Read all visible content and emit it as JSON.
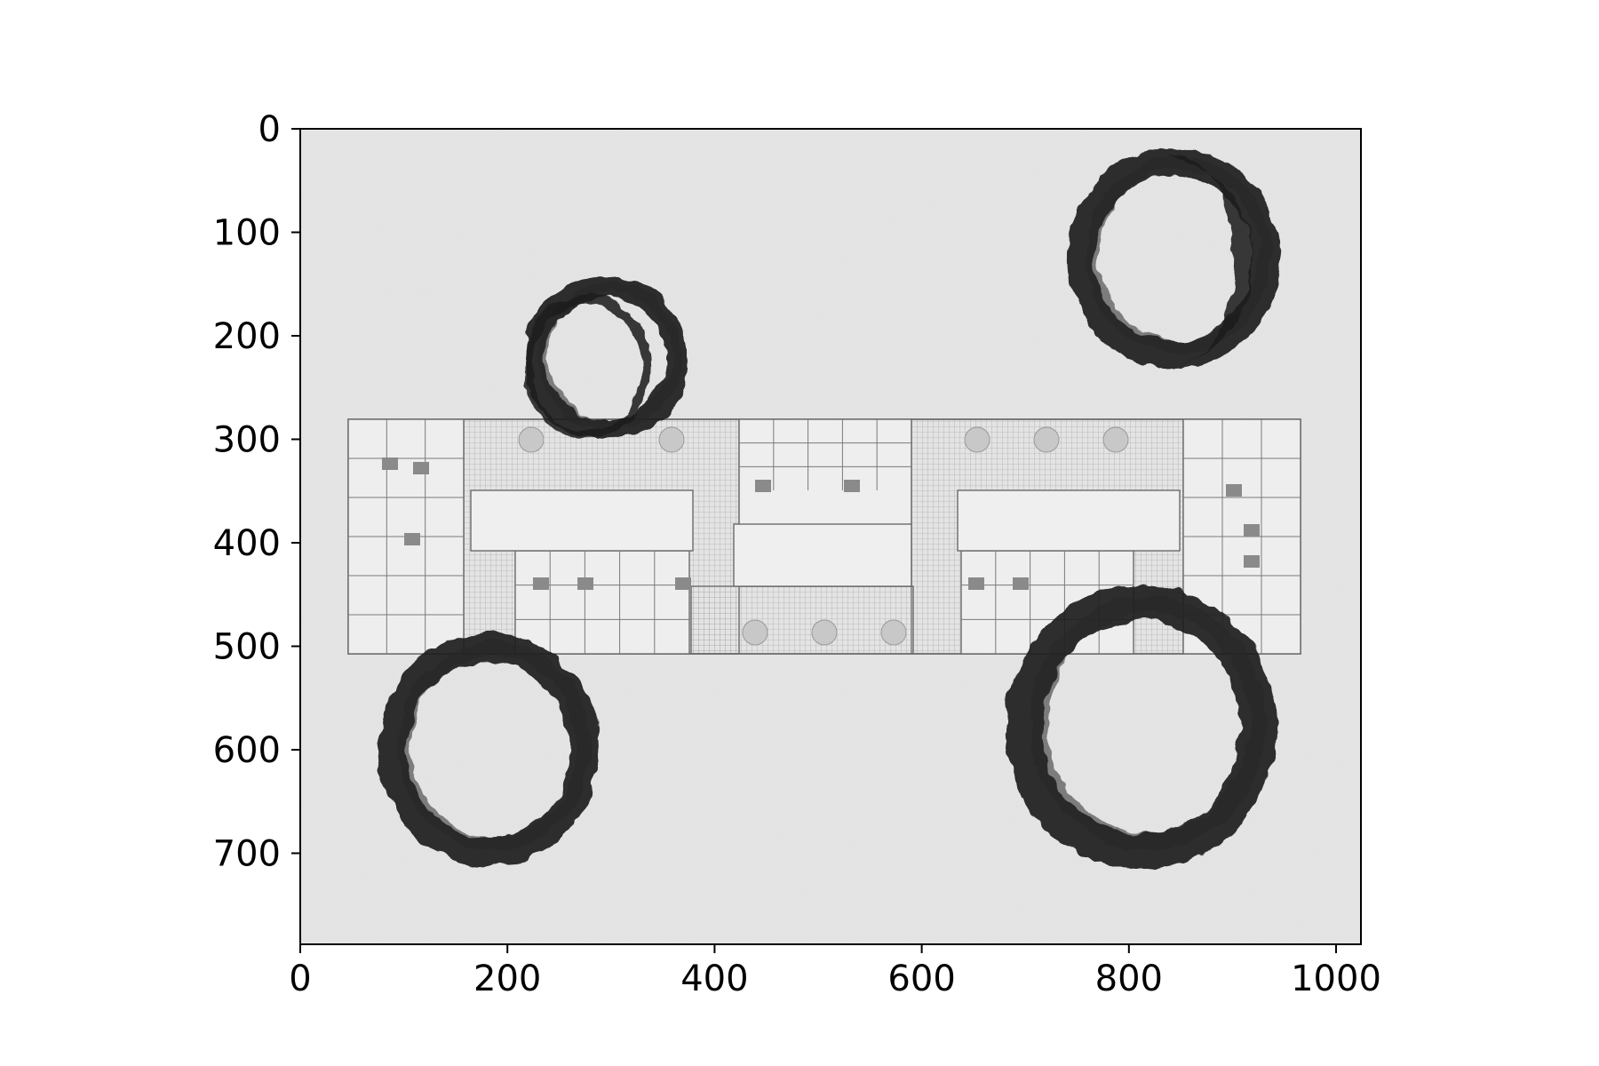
{
  "figure": {
    "content": "grayscale floor plan on textured paper with four dark ink/coffee ring stains",
    "x_axis": {
      "lim": [
        0,
        1024
      ],
      "ticks": [
        0,
        200,
        400,
        600,
        800,
        1000
      ],
      "tick_labels": [
        "0",
        "200",
        "400",
        "600",
        "800",
        "1000"
      ]
    },
    "y_axis": {
      "lim": [
        788,
        0
      ],
      "inverted": true,
      "ticks": [
        0,
        100,
        200,
        300,
        400,
        500,
        600,
        700
      ],
      "tick_labels": [
        "0",
        "100",
        "200",
        "300",
        "400",
        "500",
        "600",
        "700"
      ]
    },
    "stains": [
      {
        "name": "stain-top-center",
        "cx": 295,
        "cy": 222,
        "rx": 80,
        "ry": 80
      },
      {
        "name": "stain-top-right",
        "cx": 843,
        "cy": 125,
        "rx": 104,
        "ry": 108
      },
      {
        "name": "stain-bottom-left",
        "cx": 182,
        "cy": 600,
        "rx": 108,
        "ry": 115
      },
      {
        "name": "stain-bottom-right",
        "cx": 812,
        "cy": 578,
        "rx": 132,
        "ry": 140
      }
    ],
    "colors": {
      "paper": "#e8e8e8",
      "ink": "#1b1b1b",
      "plan_line": "#6a6a6a",
      "frame": "#000000"
    }
  }
}
